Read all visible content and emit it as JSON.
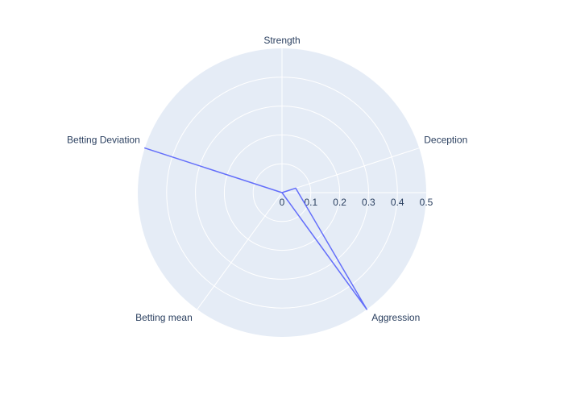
{
  "chart_data": {
    "type": "radar",
    "title": "",
    "axes": [
      "Strength",
      "Deception",
      "Aggression",
      "Betting mean",
      "Betting Deviation"
    ],
    "series": [
      {
        "values": [
          0.0,
          0.05,
          0.5,
          0.0,
          0.5
        ],
        "color": "#636efa"
      }
    ],
    "radial_range": [
      0,
      0.5
    ],
    "radial_ticks": [
      0,
      0.1,
      0.2,
      0.3,
      0.4,
      0.5
    ],
    "radial_tick_labels": [
      "0",
      "0.1",
      "0.2",
      "0.3",
      "0.4",
      "0.5"
    ],
    "grid": true,
    "background_color": "#e5ecf6",
    "grid_color": "#ffffff",
    "text_color": "#2a3f5f"
  }
}
